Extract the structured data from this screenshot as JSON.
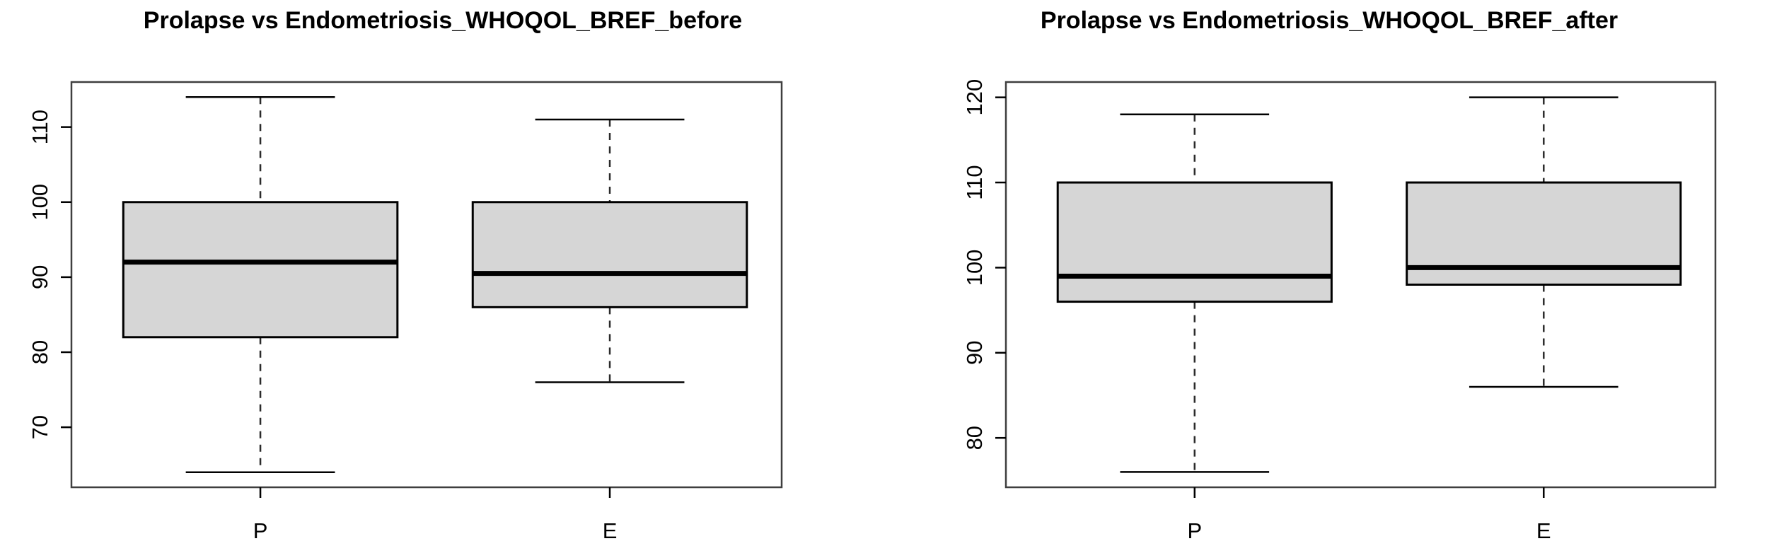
{
  "figure": {
    "background_color": "#ffffff",
    "text_color": "#000000"
  },
  "chart_data": [
    {
      "type": "boxplot",
      "title": "Prolapse vs Endometriosis_WHOQOL_BREF_before",
      "categories": [
        "P",
        "E"
      ],
      "y_ticks": [
        70,
        80,
        90,
        100,
        110
      ],
      "ylim": [
        62,
        116
      ],
      "grid": false,
      "series": [
        {
          "name": "P",
          "min": 64,
          "q1": 82,
          "median": 92,
          "q3": 100,
          "max": 114
        },
        {
          "name": "E",
          "min": 76,
          "q1": 86,
          "median": 90.5,
          "q3": 100,
          "max": 111
        }
      ],
      "box_fill": "#d6d6d6",
      "box_stroke": "#000000",
      "median_color": "#000000",
      "whisker_color": "#2b2b2b",
      "frame_color": "#3f3f3f"
    },
    {
      "type": "boxplot",
      "title": "Prolapse vs Endometriosis_WHOQOL_BREF_after",
      "categories": [
        "P",
        "E"
      ],
      "y_ticks": [
        80,
        90,
        100,
        110,
        120
      ],
      "ylim": [
        74.2,
        121.8
      ],
      "grid": false,
      "series": [
        {
          "name": "P",
          "min": 76,
          "q1": 96,
          "median": 99,
          "q3": 110,
          "max": 118
        },
        {
          "name": "E",
          "min": 86,
          "q1": 98,
          "median": 100,
          "q3": 110,
          "max": 120
        }
      ],
      "box_fill": "#d6d6d6",
      "box_stroke": "#000000",
      "median_color": "#000000",
      "whisker_color": "#2b2b2b",
      "frame_color": "#3f3f3f"
    }
  ]
}
